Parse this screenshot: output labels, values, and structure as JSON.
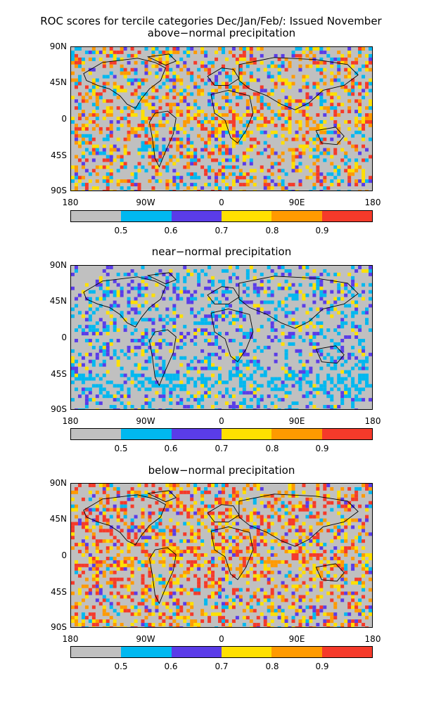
{
  "title": "ROC scores for tercile categories Dec/Jan/Feb/: Issued November",
  "lat_labels": [
    "90N",
    "45N",
    "0",
    "45S",
    "90S"
  ],
  "lon_labels": [
    "180",
    "90W",
    "0",
    "90E",
    "180"
  ],
  "colorbar": {
    "colors": [
      "#c0c0c0",
      "#00b8f0",
      "#5a3ce8",
      "#ffe000",
      "#ff9a00",
      "#f53a2a"
    ],
    "labels": [
      "0.5",
      "0.6",
      "0.7",
      "0.8",
      "0.9"
    ]
  },
  "panels": [
    {
      "subtitle": "above−normal precipitation",
      "icon": "world-map-roc-above-normal"
    },
    {
      "subtitle": "near−normal precipitation",
      "icon": "world-map-roc-near-normal"
    },
    {
      "subtitle": "below−normal precipitation",
      "icon": "world-map-roc-below-normal"
    }
  ]
}
